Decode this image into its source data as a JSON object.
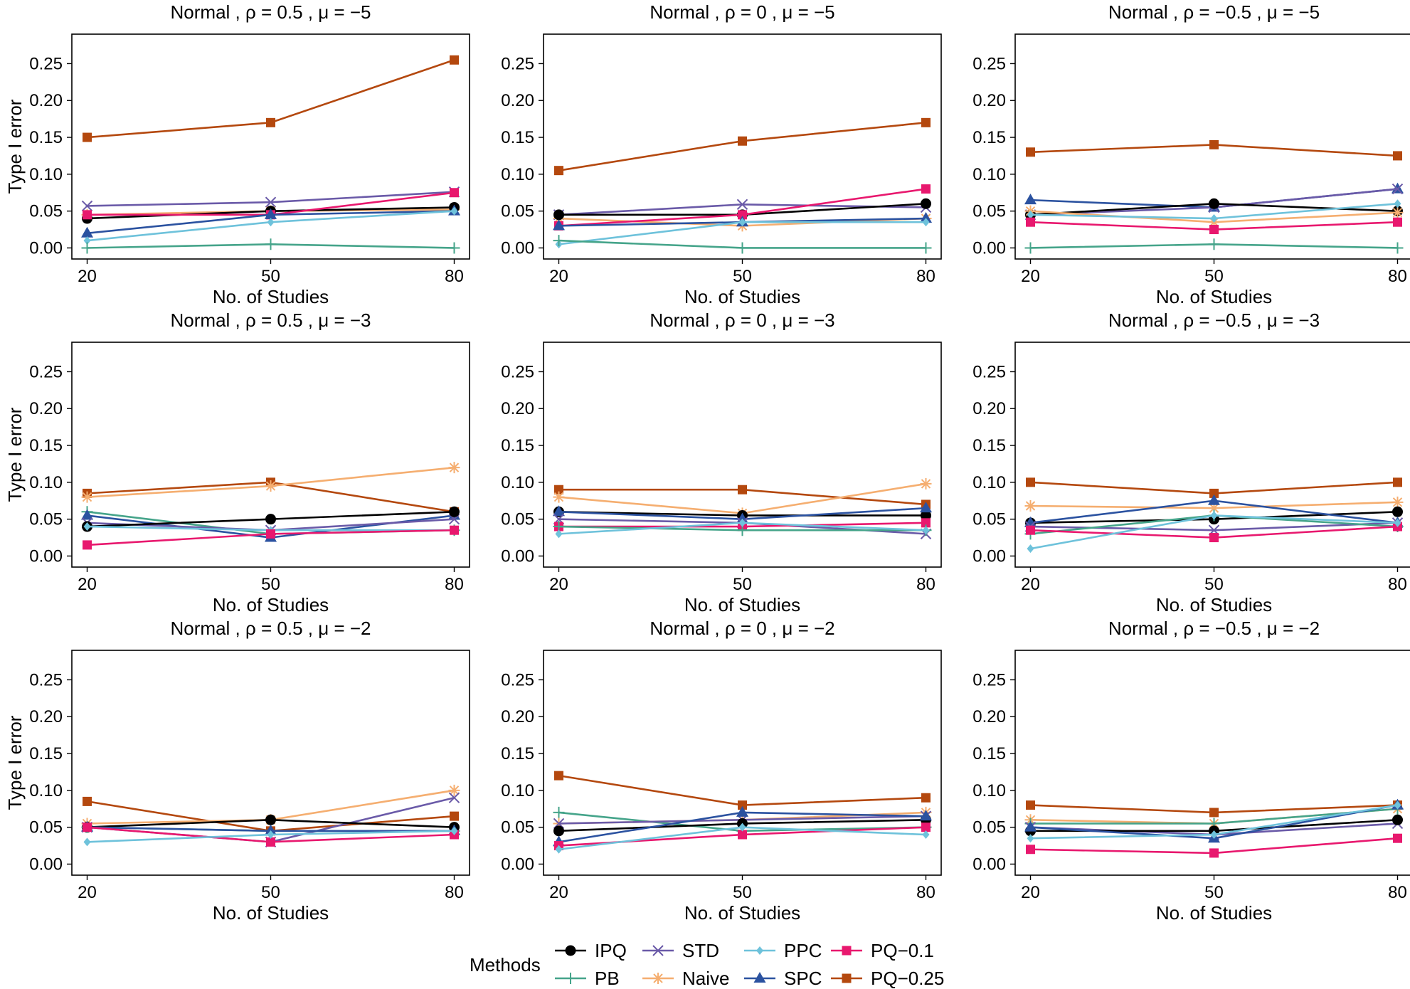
{
  "legend": {
    "title": "Methods",
    "order": [
      "IPQ",
      "PB",
      "STD",
      "Naive",
      "PPC",
      "SPC",
      "PQ-0.1",
      "PQ-0.25"
    ]
  },
  "axes": {
    "xlabel": "No. of Studies",
    "ylabel": "Type I error",
    "x_ticks": [
      20,
      50,
      80
    ],
    "x_tick_labels": [
      "20",
      "50",
      "80"
    ],
    "y_ticks": [
      0.0,
      0.05,
      0.1,
      0.15,
      0.2,
      0.25
    ],
    "y_tick_labels": [
      "0.00",
      "0.05",
      "0.10",
      "0.15",
      "0.20",
      "0.25"
    ],
    "xlim": [
      17.5,
      82.5
    ],
    "ylim": [
      -0.015,
      0.29
    ]
  },
  "methods": [
    {
      "name": "IPQ",
      "label": "IPQ",
      "color": "#000000",
      "marker": "circle"
    },
    {
      "name": "PB",
      "label": "PB",
      "color": "#45A48A",
      "marker": "plus"
    },
    {
      "name": "STD",
      "label": "STD",
      "color": "#6A5AA8",
      "marker": "x"
    },
    {
      "name": "Naive",
      "label": "Naive",
      "color": "#F5AE70",
      "marker": "asterisk"
    },
    {
      "name": "PPC",
      "label": "PPC",
      "color": "#6EC2DB",
      "marker": "diamond"
    },
    {
      "name": "SPC",
      "label": "SPC",
      "color": "#2B52A0",
      "marker": "triangle"
    },
    {
      "name": "PQ-0.1",
      "label": "PQ−0.1",
      "color": "#E8186E",
      "marker": "square"
    },
    {
      "name": "PQ-0.25",
      "label": "PQ−0.25",
      "color": "#B4480E",
      "marker": "square"
    }
  ],
  "chart_data": [
    {
      "type": "line",
      "title": "Normal , ρ = 0.5 , μ = −5",
      "x": [
        20,
        50,
        80
      ],
      "xlabel": "No. of Studies",
      "ylabel": "Type I error",
      "series": [
        {
          "name": "PQ-0.25",
          "values": [
            0.15,
            0.17,
            0.255
          ]
        },
        {
          "name": "STD",
          "values": [
            0.057,
            0.062,
            0.076
          ]
        },
        {
          "name": "Naive",
          "values": [
            0.045,
            0.05,
            0.052
          ]
        },
        {
          "name": "IPQ",
          "values": [
            0.04,
            0.05,
            0.055
          ]
        },
        {
          "name": "PQ-0.1",
          "values": [
            0.045,
            0.045,
            0.075
          ]
        },
        {
          "name": "SPC",
          "values": [
            0.02,
            0.045,
            0.05
          ]
        },
        {
          "name": "PPC",
          "values": [
            0.01,
            0.035,
            0.05
          ]
        },
        {
          "name": "PB",
          "values": [
            0.0,
            0.005,
            0.0
          ]
        }
      ]
    },
    {
      "type": "line",
      "title": "Normal , ρ = 0 , μ = −5",
      "x": [
        20,
        50,
        80
      ],
      "xlabel": "No. of Studies",
      "ylabel": "Type I error",
      "series": [
        {
          "name": "PQ-0.25",
          "values": [
            0.105,
            0.145,
            0.17
          ]
        },
        {
          "name": "STD",
          "values": [
            0.045,
            0.059,
            0.055
          ]
        },
        {
          "name": "Naive",
          "values": [
            0.04,
            0.03,
            0.04
          ]
        },
        {
          "name": "IPQ",
          "values": [
            0.045,
            0.045,
            0.06
          ]
        },
        {
          "name": "PQ-0.1",
          "values": [
            0.03,
            0.045,
            0.08
          ]
        },
        {
          "name": "SPC",
          "values": [
            0.03,
            0.035,
            0.04
          ]
        },
        {
          "name": "PPC",
          "values": [
            0.005,
            0.035,
            0.035
          ]
        },
        {
          "name": "PB",
          "values": [
            0.01,
            0.0,
            0.0
          ]
        }
      ]
    },
    {
      "type": "line",
      "title": "Normal , ρ = −0.5 , μ = −5",
      "x": [
        20,
        50,
        80
      ],
      "xlabel": "No. of Studies",
      "ylabel": "Type I error",
      "series": [
        {
          "name": "PQ-0.25",
          "values": [
            0.13,
            0.14,
            0.125
          ]
        },
        {
          "name": "SPC",
          "values": [
            0.065,
            0.055,
            0.08
          ]
        },
        {
          "name": "STD",
          "values": [
            0.045,
            0.055,
            0.08
          ]
        },
        {
          "name": "IPQ",
          "values": [
            0.045,
            0.06,
            0.05
          ]
        },
        {
          "name": "Naive",
          "values": [
            0.05,
            0.035,
            0.048
          ]
        },
        {
          "name": "PPC",
          "values": [
            0.045,
            0.04,
            0.06
          ]
        },
        {
          "name": "PQ-0.1",
          "values": [
            0.035,
            0.025,
            0.035
          ]
        },
        {
          "name": "PB",
          "values": [
            0.0,
            0.005,
            0.0
          ]
        }
      ]
    },
    {
      "type": "line",
      "title": "Normal , ρ = 0.5 , μ = −3",
      "x": [
        20,
        50,
        80
      ],
      "xlabel": "No. of Studies",
      "ylabel": "Type I error",
      "series": [
        {
          "name": "PQ-0.25",
          "values": [
            0.085,
            0.1,
            0.06
          ]
        },
        {
          "name": "Naive",
          "values": [
            0.08,
            0.095,
            0.12
          ]
        },
        {
          "name": "PB",
          "values": [
            0.06,
            0.03,
            0.035
          ]
        },
        {
          "name": "SPC",
          "values": [
            0.055,
            0.025,
            0.055
          ]
        },
        {
          "name": "STD",
          "values": [
            0.045,
            0.035,
            0.05
          ]
        },
        {
          "name": "IPQ",
          "values": [
            0.04,
            0.05,
            0.06
          ]
        },
        {
          "name": "PPC",
          "values": [
            0.04,
            0.035,
            0.035
          ]
        },
        {
          "name": "PQ-0.1",
          "values": [
            0.015,
            0.03,
            0.035
          ]
        }
      ]
    },
    {
      "type": "line",
      "title": "Normal , ρ = 0 , μ = −3",
      "x": [
        20,
        50,
        80
      ],
      "xlabel": "No. of Studies",
      "ylabel": "Type I error",
      "series": [
        {
          "name": "PQ-0.25",
          "values": [
            0.09,
            0.09,
            0.07
          ]
        },
        {
          "name": "Naive",
          "values": [
            0.08,
            0.058,
            0.098
          ]
        },
        {
          "name": "IPQ",
          "values": [
            0.06,
            0.055,
            0.055
          ]
        },
        {
          "name": "SPC",
          "values": [
            0.06,
            0.05,
            0.065
          ]
        },
        {
          "name": "STD",
          "values": [
            0.05,
            0.045,
            0.03
          ]
        },
        {
          "name": "PQ-0.1",
          "values": [
            0.04,
            0.04,
            0.045
          ]
        },
        {
          "name": "PB",
          "values": [
            0.04,
            0.035,
            0.035
          ]
        },
        {
          "name": "PPC",
          "values": [
            0.03,
            0.045,
            0.035
          ]
        }
      ]
    },
    {
      "type": "line",
      "title": "Normal , ρ = −0.5 , μ = −3",
      "x": [
        20,
        50,
        80
      ],
      "xlabel": "No. of Studies",
      "ylabel": "Type I error",
      "series": [
        {
          "name": "PQ-0.25",
          "values": [
            0.1,
            0.085,
            0.1
          ]
        },
        {
          "name": "Naive",
          "values": [
            0.068,
            0.065,
            0.073
          ]
        },
        {
          "name": "IPQ",
          "values": [
            0.045,
            0.05,
            0.06
          ]
        },
        {
          "name": "SPC",
          "values": [
            0.045,
            0.075,
            0.045
          ]
        },
        {
          "name": "STD",
          "values": [
            0.04,
            0.035,
            0.045
          ]
        },
        {
          "name": "PB",
          "values": [
            0.03,
            0.055,
            0.04
          ]
        },
        {
          "name": "PQ-0.1",
          "values": [
            0.035,
            0.025,
            0.04
          ]
        },
        {
          "name": "PPC",
          "values": [
            0.01,
            0.055,
            0.045
          ]
        }
      ]
    },
    {
      "type": "line",
      "title": "Normal , ρ = 0.5 , μ = −2",
      "x": [
        20,
        50,
        80
      ],
      "xlabel": "No. of Studies",
      "ylabel": "Type I error",
      "series": [
        {
          "name": "PQ-0.25",
          "values": [
            0.085,
            0.045,
            0.065
          ]
        },
        {
          "name": "Naive",
          "values": [
            0.055,
            0.06,
            0.1
          ]
        },
        {
          "name": "STD",
          "values": [
            0.05,
            0.03,
            0.09
          ]
        },
        {
          "name": "IPQ",
          "values": [
            0.05,
            0.06,
            0.05
          ]
        },
        {
          "name": "PB",
          "values": [
            0.05,
            0.045,
            0.045
          ]
        },
        {
          "name": "SPC",
          "values": [
            0.05,
            0.045,
            0.045
          ]
        },
        {
          "name": "PQ-0.1",
          "values": [
            0.05,
            0.03,
            0.04
          ]
        },
        {
          "name": "PPC",
          "values": [
            0.03,
            0.04,
            0.045
          ]
        }
      ]
    },
    {
      "type": "line",
      "title": "Normal , ρ = 0 , μ = −2",
      "x": [
        20,
        50,
        80
      ],
      "xlabel": "No. of Studies",
      "ylabel": "Type I error",
      "series": [
        {
          "name": "PQ-0.25",
          "values": [
            0.12,
            0.08,
            0.09
          ]
        },
        {
          "name": "PB",
          "values": [
            0.07,
            0.045,
            0.05
          ]
        },
        {
          "name": "Naive",
          "values": [
            0.055,
            0.06,
            0.07
          ]
        },
        {
          "name": "STD",
          "values": [
            0.055,
            0.06,
            0.065
          ]
        },
        {
          "name": "IPQ",
          "values": [
            0.045,
            0.055,
            0.06
          ]
        },
        {
          "name": "SPC",
          "values": [
            0.03,
            0.07,
            0.065
          ]
        },
        {
          "name": "PQ-0.1",
          "values": [
            0.025,
            0.04,
            0.05
          ]
        },
        {
          "name": "PPC",
          "values": [
            0.02,
            0.05,
            0.04
          ]
        }
      ]
    },
    {
      "type": "line",
      "title": "Normal , ρ = −0.5 , μ = −2",
      "x": [
        20,
        50,
        80
      ],
      "xlabel": "No. of Studies",
      "ylabel": "Type I error",
      "series": [
        {
          "name": "PQ-0.25",
          "values": [
            0.08,
            0.07,
            0.08
          ]
        },
        {
          "name": "Naive",
          "values": [
            0.06,
            0.055,
            0.075
          ]
        },
        {
          "name": "PB",
          "values": [
            0.055,
            0.055,
            0.075
          ]
        },
        {
          "name": "STD",
          "values": [
            0.05,
            0.04,
            0.055
          ]
        },
        {
          "name": "IPQ",
          "values": [
            0.045,
            0.045,
            0.06
          ]
        },
        {
          "name": "SPC",
          "values": [
            0.05,
            0.035,
            0.08
          ]
        },
        {
          "name": "PPC",
          "values": [
            0.035,
            0.04,
            0.08
          ]
        },
        {
          "name": "PQ-0.1",
          "values": [
            0.02,
            0.015,
            0.035
          ]
        }
      ]
    }
  ]
}
